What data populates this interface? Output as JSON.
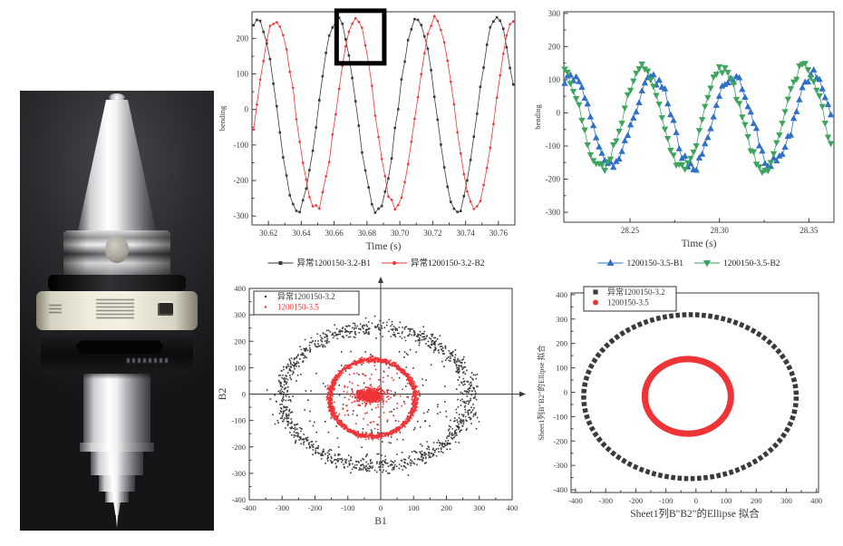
{
  "figure": {
    "background": "#ffffff"
  },
  "photo": {
    "description": "metallic BT-taper sensory tool holder with cream sensor-ring label on dark background"
  },
  "colors": {
    "axis": "#3a3a3a",
    "black_series": "#3a3a3a",
    "red_series": "#ef3437",
    "blue_series": "#2e6fc8",
    "green_series": "#3ca45d",
    "highlight": "#000000"
  },
  "chart_data": [
    {
      "id": "bend32",
      "type": "line",
      "xlabel": "Time (s)",
      "ylabel": "bending",
      "xlim": [
        30.61,
        30.77
      ],
      "ylim": [
        -325,
        275
      ],
      "xticks": [
        30.62,
        30.64,
        30.66,
        30.68,
        30.7,
        30.72,
        30.74,
        30.76
      ],
      "xtick_labels": [
        "30.62",
        "30.64",
        "30.66",
        "30.68",
        "30.70",
        "30.72",
        "30.74",
        "30.76"
      ],
      "yticks": [
        -300,
        -200,
        -100,
        0,
        100,
        200
      ],
      "ytick_labels": [
        "-300",
        "-200",
        "-100",
        "0",
        "100",
        "200"
      ],
      "grid": false,
      "legend_position": "below",
      "highlight_box": {
        "x0": 30.6615,
        "x1": 30.6905,
        "y0": 130,
        "y1": 278
      },
      "series": [
        {
          "name": "异常1200150-3.2-B1",
          "color": "#3a3a3a",
          "marker": "square",
          "signal": {
            "shape": "cosine",
            "amplitude": 272,
            "offset": -15,
            "period_s": 0.0485,
            "peak_t": 30.6135,
            "noise_sd": 5,
            "t_start": 30.611,
            "t_end": 30.769,
            "dt": 0.002,
            "seed": 11
          }
        },
        {
          "name": "异常1200150-3.2-B2",
          "color": "#ef3437",
          "marker": "circle",
          "signal": {
            "shape": "cosine",
            "amplitude": 265,
            "offset": -10,
            "period_s": 0.0485,
            "peak_t": 30.6245,
            "noise_sd": 5,
            "t_start": 30.611,
            "t_end": 30.769,
            "dt": 0.002,
            "seed": 22
          }
        }
      ]
    },
    {
      "id": "bend35",
      "type": "line",
      "xlabel": "Time (s)",
      "ylabel": "bending",
      "xlim": [
        28.213,
        28.364
      ],
      "ylim": [
        -330,
        305
      ],
      "xticks": [
        28.25,
        28.3,
        28.35
      ],
      "xtick_labels": [
        "28.25",
        "28.30",
        "28.35"
      ],
      "yticks": [
        -300,
        -200,
        -100,
        0,
        100,
        200,
        300
      ],
      "ytick_labels": [
        "-300",
        "-200",
        "-100",
        "0",
        "100",
        "200",
        "300"
      ],
      "grid": false,
      "legend_position": "below",
      "series": [
        {
          "name": "1200150-3.5-B1",
          "color": "#2e6fc8",
          "marker": "triangle-up",
          "signal": {
            "shape": "cosine",
            "amplitude": 135,
            "offset": -25,
            "period_s": 0.045,
            "peak_t": 28.2175,
            "noise_sd": 9,
            "t_start": 28.2135,
            "t_end": 28.3625,
            "dt": 0.0016,
            "seed": 33
          }
        },
        {
          "name": "1200150-3.5-B2",
          "color": "#3ca45d",
          "marker": "triangle-down",
          "signal": {
            "shape": "cosine",
            "amplitude": 152,
            "offset": -17,
            "period_s": 0.0452,
            "peak_t": 28.2115,
            "noise_sd": 9,
            "t_start": 28.2135,
            "t_end": 28.3625,
            "dt": 0.0016,
            "seed": 44
          }
        }
      ]
    },
    {
      "id": "orbit",
      "type": "scatter",
      "xlabel": "B1",
      "ylabel": "B2",
      "xlim": [
        -400,
        400
      ],
      "ylim": [
        -400,
        400
      ],
      "xticks": [
        -400,
        -300,
        -200,
        -100,
        0,
        100,
        200,
        300,
        400
      ],
      "xtick_labels": [
        "-400",
        "-300",
        "-200",
        "-100",
        "0",
        "100",
        "200",
        "300",
        "400"
      ],
      "yticks": [
        -400,
        -300,
        -200,
        -100,
        0,
        100,
        200,
        300,
        400
      ],
      "ytick_labels": [
        "-400",
        "-300",
        "-200",
        "-100",
        "0",
        "100",
        "200",
        "300",
        "400"
      ],
      "zero_axes": true,
      "legend": {
        "entries": [
          {
            "label": "异常1200150-3.2",
            "text_color": "#3a3a3a",
            "marker_color": "#3a3a3a"
          },
          {
            "label": "1200150-3.5",
            "text_color": "#ef3437",
            "marker_color": "#ef3437"
          }
        ]
      },
      "series": [
        {
          "name": "异常1200150-3.2",
          "color": "#3a3a3a",
          "clouds": [
            {
              "kind": "ring",
              "cx": -15,
              "cy": -10,
              "rx": 285,
              "ry": 262,
              "radial_sd": 16,
              "count": 1150,
              "seed": 55
            },
            {
              "kind": "uniform-disk",
              "cx": -10,
              "cy": -20,
              "rx": 230,
              "ry": 215,
              "count": 130,
              "seed": 56
            }
          ]
        },
        {
          "name": "1200150-3.5",
          "color": "#ef3437",
          "clouds": [
            {
              "kind": "ring",
              "cx": -25,
              "cy": -15,
              "rx": 130,
              "ry": 145,
              "radial_sd": 5,
              "count": 1500,
              "seed": 57
            },
            {
              "kind": "cluster",
              "cx": -32,
              "cy": -5,
              "sx": 22,
              "sy": 13,
              "count": 600,
              "seed": 58
            },
            {
              "kind": "uniform-disk",
              "cx": -25,
              "cy": -15,
              "rx": 112,
              "ry": 128,
              "count": 80,
              "seed": 59
            }
          ]
        }
      ]
    },
    {
      "id": "ellipse",
      "type": "ellipse",
      "xlabel": "Sheet1列B\"B2\"的Ellipse 拟合",
      "ylabel": "Sheet1列B\"B2\"的Ellipse 拟合",
      "xlim": [
        -415,
        407
      ],
      "ylim": [
        -411,
        407
      ],
      "xticks": [
        -400,
        -300,
        -200,
        -100,
        0,
        100,
        200,
        300,
        400
      ],
      "xtick_labels": [
        "-400",
        "-300",
        "-200",
        "-100",
        "0",
        "100",
        "200",
        "300",
        "400"
      ],
      "yticks": [
        -400,
        -300,
        -200,
        -100,
        0,
        100,
        200,
        300,
        400
      ],
      "ytick_labels": [
        "-400",
        "-300",
        "-200",
        "-100",
        "0",
        "100",
        "200",
        "300",
        "400"
      ],
      "legend": {
        "entries": [
          {
            "label": "异常1200150-3.2",
            "text_color": "#3a3a3a",
            "marker_color": "#3a3a3a",
            "marker": "square"
          },
          {
            "label": "1200150-3.5",
            "text_color": "#3a3a3a",
            "marker_color": "#ef3437",
            "marker": "circle"
          }
        ]
      },
      "series": [
        {
          "name": "异常1200150-3.2",
          "color": "#3a3a3a",
          "style": "dashed-squares",
          "ellipse": {
            "cx": -20,
            "cy": -18,
            "rx": 353,
            "ry": 336
          }
        },
        {
          "name": "1200150-3.5",
          "color": "#ef3437",
          "style": "thick-solid",
          "ellipse": {
            "cx": -27,
            "cy": -17,
            "rx": 143,
            "ry": 153
          }
        }
      ]
    }
  ]
}
